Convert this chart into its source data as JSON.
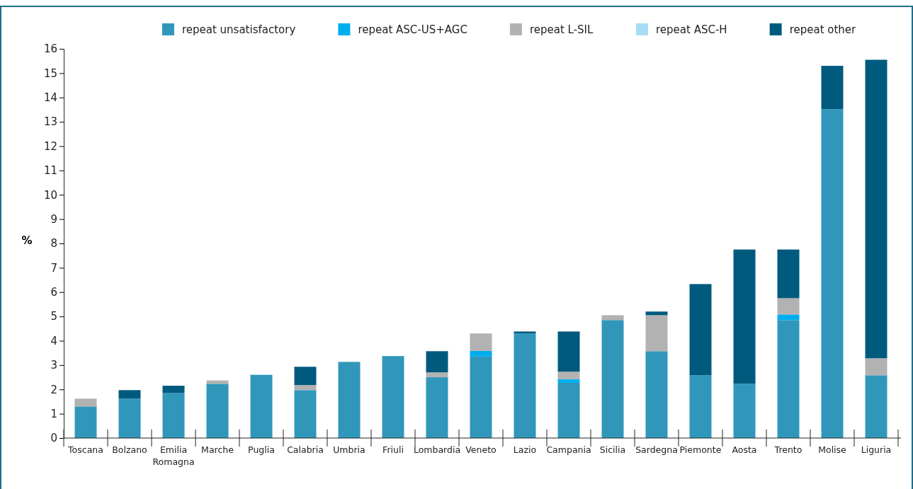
{
  "chart_data": {
    "type": "bar",
    "stacked": true,
    "ylabel": "%",
    "legend": "top",
    "categories": [
      "Toscana",
      "Bolzano",
      "Emilia Romagna",
      "Marche",
      "Puglia",
      "Calabria",
      "Umbria",
      "Friuli",
      "Lombardia",
      "Veneto",
      "Lazio",
      "Campania",
      "Sicilia",
      "Sardegna",
      "Piemonte",
      "Aosta",
      "Trento",
      "Molise",
      "Liguria"
    ],
    "ylim": [
      0,
      16
    ],
    "yticks": [
      0,
      1,
      2,
      3,
      4,
      5,
      6,
      7,
      8,
      9,
      10,
      11,
      12,
      13,
      14,
      15,
      16
    ],
    "series": [
      {
        "name": "repeat unsatisfactory",
        "color": "#3097bb",
        "values": [
          1.3,
          1.62,
          1.85,
          2.23,
          2.6,
          1.97,
          3.13,
          3.37,
          2.5,
          3.35,
          4.3,
          2.27,
          4.85,
          3.57,
          2.58,
          2.23,
          4.85,
          13.52,
          2.58
        ]
      },
      {
        "name": "repeat ASC-US+AGC",
        "color": "#00aeef",
        "values": [
          null,
          null,
          null,
          null,
          null,
          null,
          null,
          null,
          null,
          0.23,
          null,
          0.15,
          null,
          null,
          null,
          null,
          0.23,
          null,
          null
        ]
      },
      {
        "name": "repeat L-SIL",
        "color": "#b2b2b2",
        "values": [
          0.32,
          null,
          null,
          0.14,
          null,
          0.21,
          null,
          null,
          0.2,
          0.72,
          null,
          0.31,
          0.2,
          1.48,
          null,
          null,
          0.67,
          null,
          0.7
        ]
      },
      {
        "name": "repeat ASC-H",
        "color": "#a8dcf5",
        "values": [
          null,
          null,
          null,
          null,
          null,
          null,
          null,
          null,
          null,
          null,
          null,
          null,
          null,
          null,
          null,
          null,
          null,
          null,
          null
        ]
      },
      {
        "name": "repeat other",
        "color": "#005a7e",
        "values": [
          null,
          0.35,
          0.3,
          null,
          null,
          0.75,
          null,
          null,
          0.87,
          null,
          0.08,
          1.65,
          null,
          0.15,
          3.75,
          5.52,
          2.0,
          1.78,
          12.27
        ]
      }
    ]
  }
}
